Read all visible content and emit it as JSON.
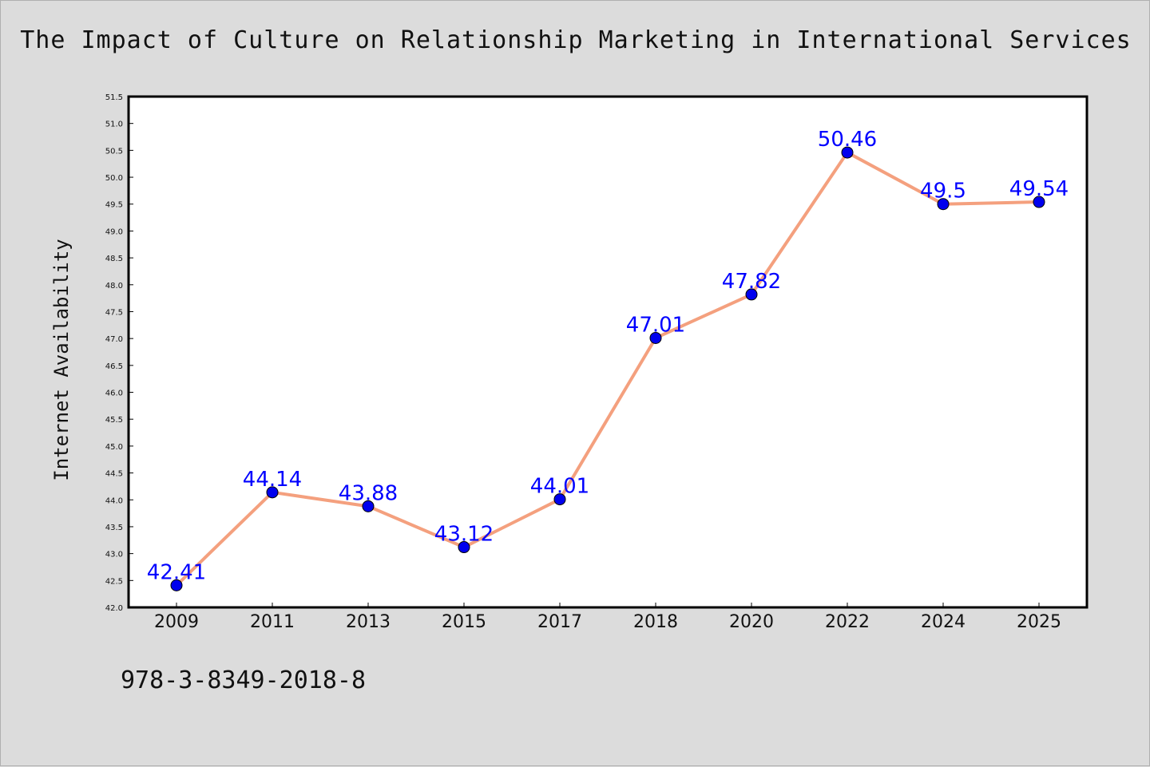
{
  "chart_data": {
    "type": "line",
    "title": "The Impact of Culture on Relationship Marketing in International Services",
    "xlabel": "",
    "ylabel": "Internet Availability",
    "categories": [
      "2009",
      "2011",
      "2013",
      "2015",
      "2017",
      "2018",
      "2020",
      "2022",
      "2024",
      "2025"
    ],
    "series": [
      {
        "values": [
          42.41,
          44.14,
          43.88,
          43.12,
          44.01,
          47.01,
          47.82,
          50.46,
          49.5,
          49.54
        ],
        "data_labels": [
          "42.41",
          "44.14",
          "43.88",
          "43.12",
          "44.01",
          "47.01",
          "47.82",
          "50.46",
          "49.5",
          "49.54"
        ],
        "line_color": "#f4a07e",
        "marker_color": "#0000ee",
        "label_color": "#0000ff"
      }
    ],
    "ylim": [
      42.0,
      51.5
    ],
    "yticks": [
      "42.0",
      "42.5",
      "43.0",
      "43.5",
      "44.0",
      "44.5",
      "45.0",
      "45.5",
      "46.0",
      "46.5",
      "47.0",
      "47.5",
      "48.0",
      "48.5",
      "49.0",
      "49.5",
      "50.0",
      "50.5",
      "51.0",
      "51.5"
    ],
    "grid": false,
    "legend": "none"
  },
  "footer": {
    "isbn": "978-3-8349-2018-8"
  },
  "colors": {
    "background": "#dcdcdc",
    "plot_background": "#ffffff",
    "axis": "#000000"
  }
}
